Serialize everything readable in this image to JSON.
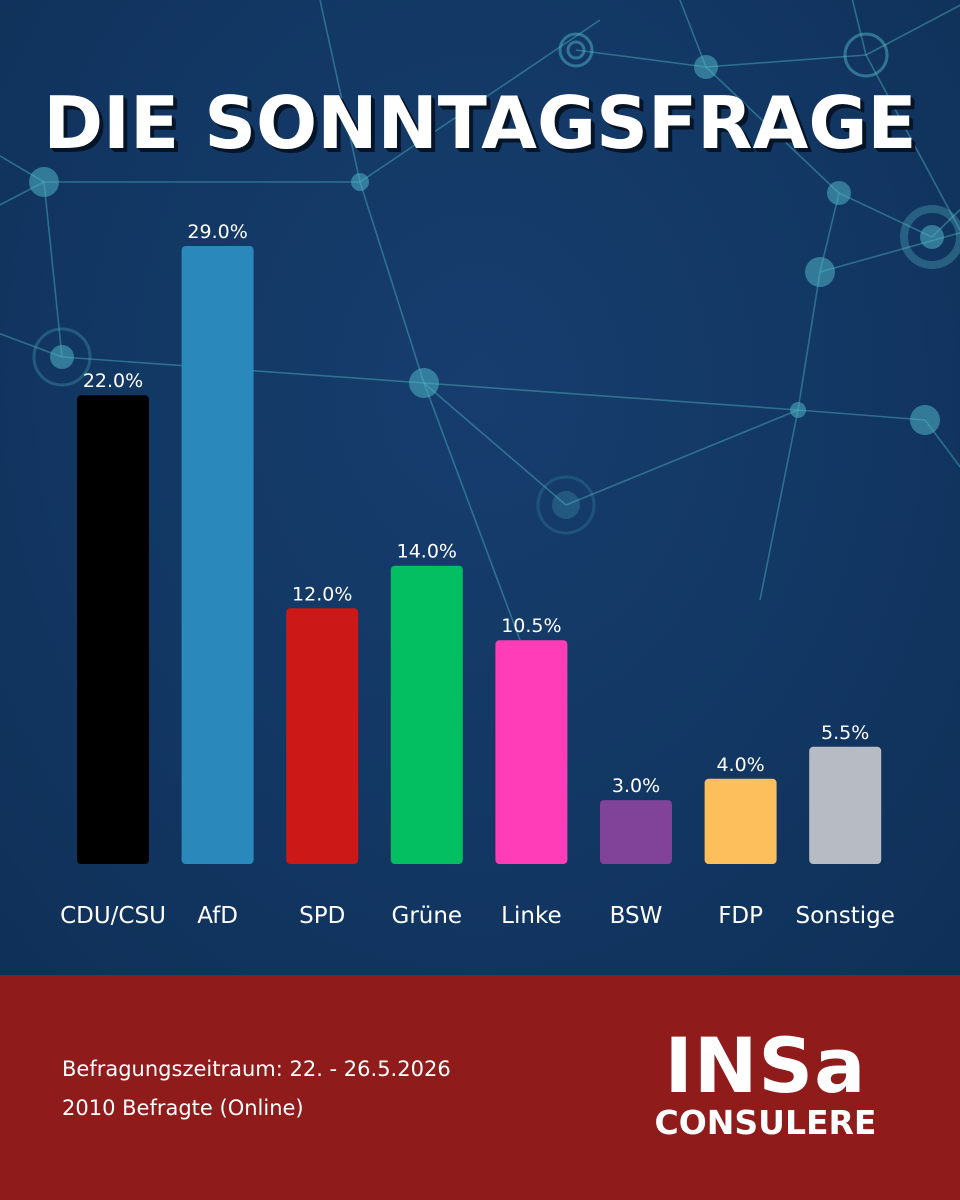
{
  "header": {
    "title": "DIE SONNTAGSFRAGE"
  },
  "chart_data": {
    "type": "bar",
    "title": "DIE SONNTAGSFRAGE",
    "categories": [
      "CDU/CSU",
      "AfD",
      "SPD",
      "Grüne",
      "Linke",
      "BSW",
      "FDP",
      "Sonstige"
    ],
    "values": [
      22.0,
      29.0,
      12.0,
      14.0,
      10.5,
      3.0,
      4.0,
      5.5
    ],
    "value_labels": [
      "22.0%",
      "29.0%",
      "12.0%",
      "14.0%",
      "10.5%",
      "3.0%",
      "4.0%",
      "5.5%"
    ],
    "colors": [
      "#000000",
      "#2b88bb",
      "#cd1818",
      "#04bf62",
      "#ff3db8",
      "#804399",
      "#fdbe5c",
      "#b7bbc3"
    ],
    "xlabel": "",
    "ylabel": "",
    "ylim": [
      0,
      29.0
    ],
    "grid": false,
    "legend": "none"
  },
  "footer": {
    "period": "Befragungszeitraum: 22. - 26.5.2026",
    "sample": "2010 Befragte (Online)",
    "background_color": "#8f1b1b"
  },
  "logo": {
    "main": "INSa",
    "sub": "CONSULERE"
  },
  "colors": {
    "background": "#123763",
    "text": "#ffffff"
  }
}
